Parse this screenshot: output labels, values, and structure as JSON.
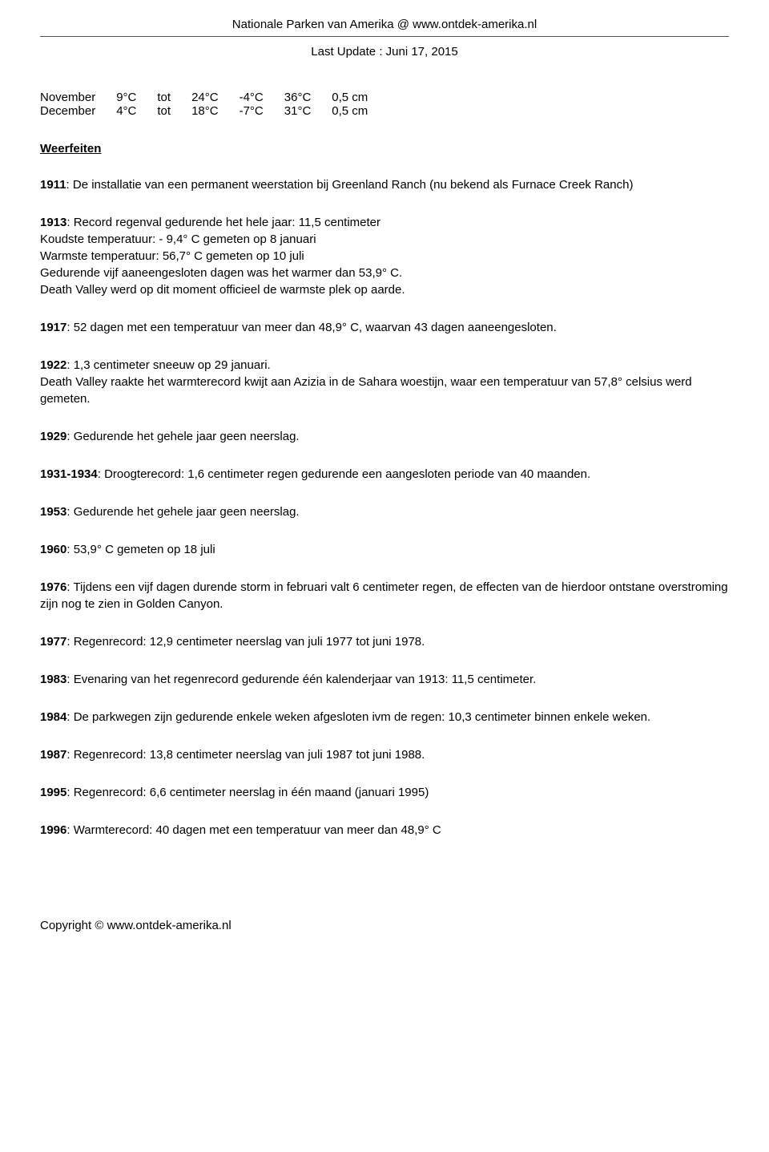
{
  "header": {
    "title": "Nationale Parken van Amerika @ www.ontdek-amerika.nl",
    "last_update": "Last Update : Juni 17, 2015"
  },
  "temperature_table": {
    "rows": [
      {
        "month": "November",
        "low": "9°C",
        "word": "tot",
        "high": "24°C",
        "record_low": "-4°C",
        "record_high": "36°C",
        "precip": "0,5 cm"
      },
      {
        "month": "December",
        "low": "4°C",
        "word": "tot",
        "high": "18°C",
        "record_low": "-7°C",
        "record_high": "31°C",
        "precip": "0,5 cm"
      }
    ]
  },
  "section_title": "Weerfeiten",
  "entries": [
    {
      "year": "1911",
      "text": ": De installatie van een permanent weerstation bij Greenland Ranch (nu bekend als Furnace Creek Ranch)"
    },
    {
      "year": "1913",
      "text": ": Record regenval gedurende het hele jaar: 11,5 centimeter\nKoudste temperatuur: - 9,4° C gemeten op 8 januari\nWarmste temperatuur: 56,7° C gemeten op 10 juli\nGedurende vijf aaneengesloten dagen was het warmer dan 53,9° C.\nDeath Valley werd op dit moment officieel de warmste plek op aarde."
    },
    {
      "year": "1917",
      "text": ": 52 dagen met een temperatuur van meer dan 48,9° C, waarvan 43 dagen aaneengesloten."
    },
    {
      "year": "1922",
      "text": ": 1,3 centimeter sneeuw op 29 januari.\nDeath Valley raakte het warmterecord kwijt aan Azizia in de Sahara woestijn, waar een temperatuur van 57,8° celsius werd gemeten."
    },
    {
      "year": "1929",
      "text": ": Gedurende het gehele jaar geen neerslag."
    },
    {
      "year": "1931-1934",
      "text": ": Droogterecord: 1,6 centimeter regen gedurende een aangesloten periode van 40 maanden."
    },
    {
      "year": "1953",
      "text": ": Gedurende het gehele jaar geen neerslag."
    },
    {
      "year": "1960",
      "text": ": 53,9° C gemeten op 18 juli"
    },
    {
      "year": "1976",
      "text": ": Tijdens een vijf dagen durende storm in februari valt 6 centimeter regen, de effecten van de hierdoor ontstane overstroming zijn nog te zien in Golden Canyon."
    },
    {
      "year": "1977",
      "text": ": Regenrecord: 12,9 centimeter neerslag van juli 1977 tot juni 1978."
    },
    {
      "year": "1983",
      "text": ": Evenaring van het regenrecord gedurende één kalenderjaar van 1913: 11,5 centimeter."
    },
    {
      "year": "1984",
      "text": ": De parkwegen zijn gedurende enkele weken afgesloten ivm de regen: 10,3 centimeter binnen enkele weken."
    },
    {
      "year": "1987",
      "text": ": Regenrecord: 13,8 centimeter neerslag van juli 1987 tot juni 1988."
    },
    {
      "year": "1995",
      "text": ": Regenrecord: 6,6 centimeter neerslag in één maand (januari 1995)"
    },
    {
      "year": "1996",
      "text": ": Warmterecord: 40 dagen met een temperatuur van meer dan 48,9° C"
    }
  ],
  "footer": {
    "copyright": "Copyright © www.ontdek-amerika.nl"
  }
}
